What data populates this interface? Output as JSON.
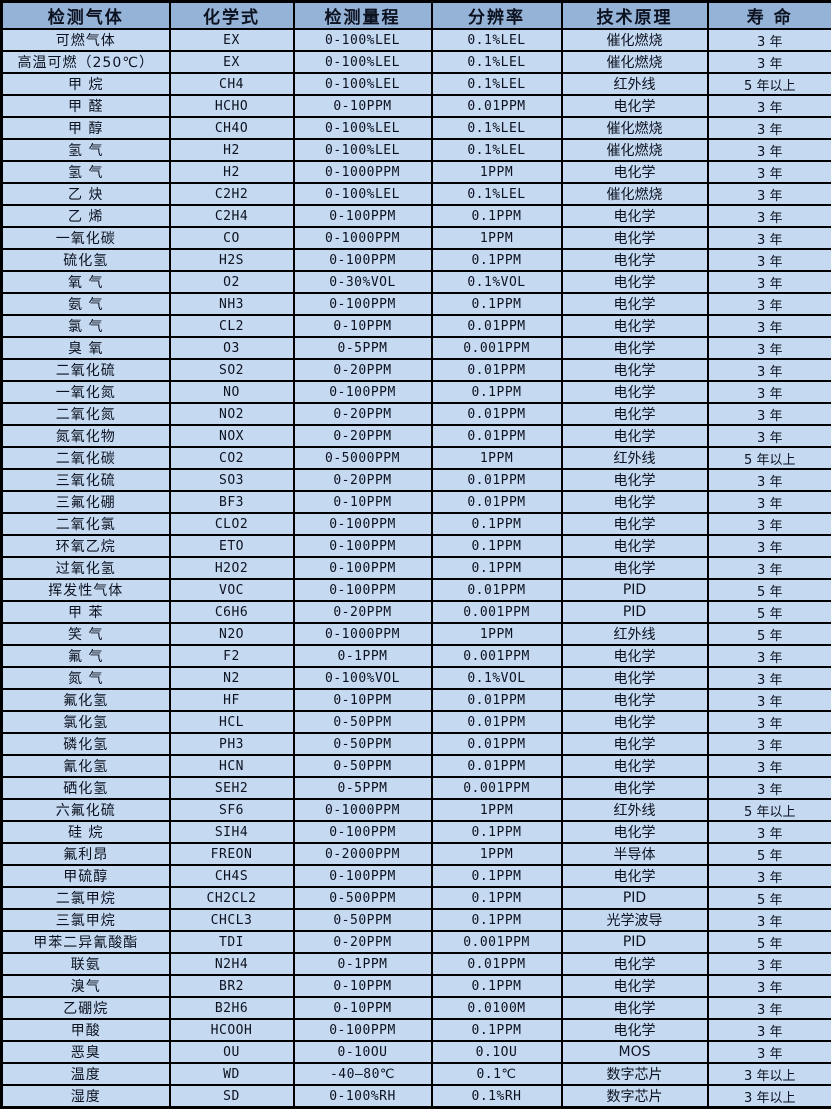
{
  "table": {
    "columns": [
      "检测气体",
      "化学式",
      "检测量程",
      "分辨率",
      "技术原理",
      "寿 命"
    ],
    "column_keys": [
      "gas",
      "formula",
      "range",
      "resolution",
      "principle",
      "lifespan"
    ],
    "rows": [
      [
        "可燃气体",
        "EX",
        "0-100%LEL",
        "0.1%LEL",
        "催化燃烧",
        "3 年"
      ],
      [
        "高温可燃（250℃）",
        "EX",
        "0-100%LEL",
        "0.1%LEL",
        "催化燃烧",
        "3 年"
      ],
      [
        "甲 烷",
        "CH4",
        "0-100%LEL",
        "0.1%LEL",
        "红外线",
        "5 年以上"
      ],
      [
        "甲 醛",
        "HCHO",
        "0-10PPM",
        "0.01PPM",
        "电化学",
        "3 年"
      ],
      [
        "甲 醇",
        "CH4O",
        "0-100%LEL",
        "0.1%LEL",
        "催化燃烧",
        "3 年"
      ],
      [
        "氢 气",
        "H2",
        "0-100%LEL",
        "0.1%LEL",
        "催化燃烧",
        "3 年"
      ],
      [
        "氢 气",
        "H2",
        "0-1000PPM",
        "1PPM",
        "电化学",
        "3 年"
      ],
      [
        "乙 炔",
        "C2H2",
        "0-100%LEL",
        "0.1%LEL",
        "催化燃烧",
        "3 年"
      ],
      [
        "乙 烯",
        "C2H4",
        "0-100PPM",
        "0.1PPM",
        "电化学",
        "3 年"
      ],
      [
        "一氧化碳",
        "CO",
        "0-1000PPM",
        "1PPM",
        "电化学",
        "3 年"
      ],
      [
        "硫化氢",
        "H2S",
        "0-100PPM",
        "0.1PPM",
        "电化学",
        "3 年"
      ],
      [
        "氧 气",
        "O2",
        "0-30%VOL",
        "0.1%VOL",
        "电化学",
        "3 年"
      ],
      [
        "氨 气",
        "NH3",
        "0-100PPM",
        "0.1PPM",
        "电化学",
        "3 年"
      ],
      [
        "氯 气",
        "CL2",
        "0-10PPM",
        "0.01PPM",
        "电化学",
        "3 年"
      ],
      [
        "臭 氧",
        "O3",
        "0-5PPM",
        "0.001PPM",
        "电化学",
        "3 年"
      ],
      [
        "二氧化硫",
        "SO2",
        "0-20PPM",
        "0.01PPM",
        "电化学",
        "3 年"
      ],
      [
        "一氧化氮",
        "NO",
        "0-100PPM",
        "0.1PPM",
        "电化学",
        "3 年"
      ],
      [
        "二氧化氮",
        "NO2",
        "0-20PPM",
        "0.01PPM",
        "电化学",
        "3 年"
      ],
      [
        "氮氧化物",
        "NOX",
        "0-20PPM",
        "0.01PPM",
        "电化学",
        "3 年"
      ],
      [
        "二氧化碳",
        "CO2",
        "0-5000PPM",
        "1PPM",
        "红外线",
        "5 年以上"
      ],
      [
        "三氧化硫",
        "SO3",
        "0-20PPM",
        "0.01PPM",
        "电化学",
        "3 年"
      ],
      [
        "三氟化硼",
        "BF3",
        "0-10PPM",
        "0.01PPM",
        "电化学",
        "3 年"
      ],
      [
        "二氧化氯",
        "CLO2",
        "0-100PPM",
        "0.1PPM",
        "电化学",
        "3 年"
      ],
      [
        "环氧乙烷",
        "ETO",
        "0-100PPM",
        "0.1PPM",
        "电化学",
        "3 年"
      ],
      [
        "过氧化氢",
        "H2O2",
        "0-100PPM",
        "0.1PPM",
        "电化学",
        "3 年"
      ],
      [
        "挥发性气体",
        "VOC",
        "0-100PPM",
        "0.01PPM",
        "PID",
        "5 年"
      ],
      [
        "甲 苯",
        "C6H6",
        "0-20PPM",
        "0.001PPM",
        "PID",
        "5 年"
      ],
      [
        "笑 气",
        "N2O",
        "0-1000PPM",
        "1PPM",
        "红外线",
        "5 年"
      ],
      [
        "氟 气",
        "F2",
        "0-1PPM",
        "0.001PPM",
        "电化学",
        "3 年"
      ],
      [
        "氮 气",
        "N2",
        "0-100%VOL",
        "0.1%VOL",
        "电化学",
        "3 年"
      ],
      [
        "氟化氢",
        "HF",
        "0-10PPM",
        "0.01PPM",
        "电化学",
        "3 年"
      ],
      [
        "氯化氢",
        "HCL",
        "0-50PPM",
        "0.01PPM",
        "电化学",
        "3 年"
      ],
      [
        "磷化氢",
        "PH3",
        "0-50PPM",
        "0.01PPM",
        "电化学",
        "3 年"
      ],
      [
        "氰化氢",
        "HCN",
        "0-50PPM",
        "0.01PPM",
        "电化学",
        "3 年"
      ],
      [
        "硒化氢",
        "SEH2",
        "0-5PPM",
        "0.001PPM",
        "电化学",
        "3 年"
      ],
      [
        "六氟化硫",
        "SF6",
        "0-1000PPM",
        "1PPM",
        "红外线",
        "5 年以上"
      ],
      [
        "硅 烷",
        "SIH4",
        "0-100PPM",
        "0.1PPM",
        "电化学",
        "3 年"
      ],
      [
        "氟利昂",
        "FREON",
        "0-2000PPM",
        "1PPM",
        "半导体",
        "5 年"
      ],
      [
        "甲硫醇",
        "CH4S",
        "0-100PPM",
        "0.1PPM",
        "电化学",
        "3 年"
      ],
      [
        "二氯甲烷",
        "CH2CL2",
        "0-500PPM",
        "0.1PPM",
        "PID",
        "5 年"
      ],
      [
        "三氯甲烷",
        "CHCL3",
        "0-50PPM",
        "0.1PPM",
        "光学波导",
        "3 年"
      ],
      [
        "甲苯二异氰酸酯",
        "TDI",
        "0-20PPM",
        "0.001PPM",
        "PID",
        "5 年"
      ],
      [
        "联氨",
        "N2H4",
        "0-1PPM",
        "0.01PPM",
        "电化学",
        "3 年"
      ],
      [
        "溴气",
        "BR2",
        "0-10PPM",
        "0.1PPM",
        "电化学",
        "3 年"
      ],
      [
        "乙硼烷",
        "B2H6",
        "0-10PPM",
        "0.0100M",
        "电化学",
        "3 年"
      ],
      [
        "甲酸",
        "HCOOH",
        "0-100PPM",
        "0.1PPM",
        "电化学",
        "3 年"
      ],
      [
        "恶臭",
        "OU",
        "0-10OU",
        "0.1OU",
        "MOS",
        "3 年"
      ],
      [
        "温度",
        "WD",
        "-40—80℃",
        "0.1℃",
        "数字芯片",
        "3 年以上"
      ],
      [
        "湿度",
        "SD",
        "0-100%RH",
        "0.1%RH",
        "数字芯片",
        "3 年以上"
      ]
    ]
  },
  "colors": {
    "header_bg": "#95b3d7",
    "row_bg": "#c5d9f1",
    "border": "#000000"
  }
}
